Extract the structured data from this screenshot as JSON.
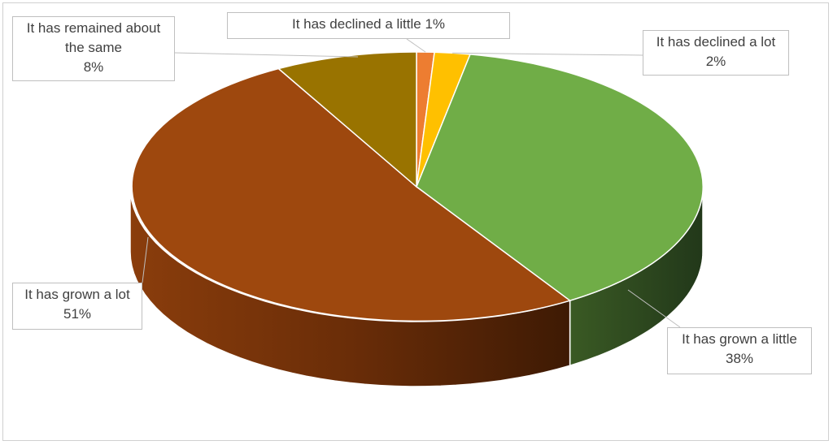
{
  "chart_data": {
    "type": "pie",
    "title": "",
    "slices": [
      {
        "label": "It has declined a little",
        "value": 1,
        "color": "#ED7D31"
      },
      {
        "label": "It has declined a lot",
        "value": 2,
        "color": "#FFC000"
      },
      {
        "label": "It has grown a little",
        "value": 38,
        "color": "#70AD47"
      },
      {
        "label": "It has grown a lot",
        "value": 51,
        "color": "#9E480E"
      },
      {
        "label": "It has remained about the same",
        "value": 8,
        "color": "#997300"
      }
    ],
    "data_labels": [
      {
        "line1": "It has declined a little 1%",
        "line2": ""
      },
      {
        "line1": "It has declined a lot",
        "line2": "2%"
      },
      {
        "line1": "It has grown a little",
        "line2": "38%"
      },
      {
        "line1": "It has grown a lot",
        "line2": "51%"
      },
      {
        "line1": "It has remained about",
        "line2": "the same",
        "line3": "8%"
      }
    ],
    "style": "3d",
    "legend": "none"
  }
}
